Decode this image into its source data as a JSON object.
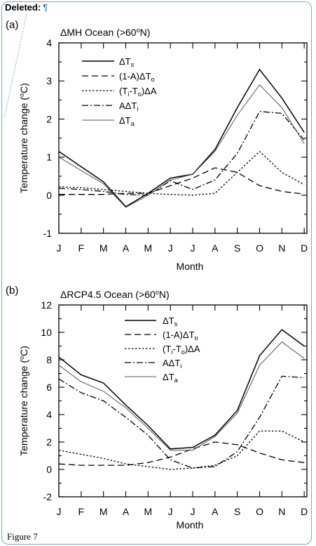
{
  "header": {
    "deleted_label": "Deleted:",
    "pilcrow": "¶"
  },
  "caption": "Figure 7",
  "colors": {
    "frame": "#7aa7d6",
    "pilcrow": "#2e74c4",
    "lines": "#000000",
    "ta_line": "#555555"
  },
  "chart_data": [
    {
      "panel": "(a)",
      "type": "line",
      "title": "ΔMH Ocean (>60°N)",
      "xlabel": "Month",
      "ylabel": "Temperature change (°C)",
      "categories": [
        "J",
        "F",
        "M",
        "A",
        "M",
        "J",
        "J",
        "A",
        "S",
        "O",
        "N",
        "D"
      ],
      "ylim": [
        -1,
        4
      ],
      "yticks": [
        -1,
        0,
        1,
        2,
        3,
        4
      ],
      "legend_position": "upper-left",
      "series": [
        {
          "name": "ΔTs",
          "values": [
            1.15,
            0.75,
            0.35,
            -0.3,
            0.05,
            0.45,
            0.55,
            1.2,
            2.3,
            3.3,
            2.55,
            1.65
          ]
        },
        {
          "name": "(1-A)ΔTo",
          "values": [
            0.02,
            0.02,
            0.02,
            0.05,
            0.05,
            0.25,
            0.45,
            0.72,
            0.6,
            0.25,
            0.1,
            0.03
          ]
        },
        {
          "name": "(Ti-To)ΔA",
          "values": [
            0.22,
            0.2,
            0.15,
            0.1,
            0.05,
            0.02,
            0.0,
            0.05,
            0.6,
            1.15,
            0.6,
            0.28
          ]
        },
        {
          "name": "AΔTi",
          "values": [
            0.18,
            0.15,
            0.1,
            0.02,
            0.0,
            0.38,
            0.15,
            0.4,
            1.1,
            2.2,
            2.15,
            1.45
          ]
        },
        {
          "name": "ΔTa",
          "values": [
            1.0,
            0.65,
            0.3,
            -0.32,
            0.0,
            0.4,
            0.55,
            1.15,
            2.1,
            2.9,
            2.3,
            1.35
          ]
        }
      ]
    },
    {
      "panel": "(b)",
      "type": "line",
      "title": "ΔRCP4.5 Ocean (>60°N)",
      "xlabel": "Month",
      "ylabel": "Temperature change (°C)",
      "categories": [
        "J",
        "F",
        "M",
        "A",
        "M",
        "J",
        "J",
        "A",
        "S",
        "O",
        "N",
        "D"
      ],
      "ylim": [
        -2,
        12
      ],
      "yticks": [
        -2,
        0,
        2,
        4,
        6,
        8,
        10,
        12
      ],
      "legend_position": "upper-right",
      "series": [
        {
          "name": "ΔTs",
          "values": [
            8.2,
            6.9,
            6.3,
            4.7,
            3.2,
            1.5,
            1.6,
            2.5,
            4.3,
            8.3,
            10.2,
            9.0
          ]
        },
        {
          "name": "(1-A)ΔTo",
          "values": [
            0.4,
            0.3,
            0.3,
            0.3,
            0.5,
            0.9,
            1.5,
            2.0,
            1.8,
            1.2,
            0.7,
            0.5
          ]
        },
        {
          "name": "(Ti-To)ΔA",
          "values": [
            1.4,
            1.1,
            0.8,
            0.4,
            0.2,
            0.0,
            0.1,
            0.3,
            1.0,
            2.8,
            2.8,
            2.0
          ]
        },
        {
          "name": "AΔTi",
          "values": [
            6.6,
            5.6,
            5.0,
            3.8,
            2.5,
            0.7,
            0.1,
            0.2,
            1.3,
            3.8,
            6.8,
            6.7
          ]
        },
        {
          "name": "ΔTa",
          "values": [
            7.6,
            6.4,
            5.7,
            4.5,
            3.0,
            1.4,
            1.4,
            2.4,
            4.1,
            7.6,
            9.3,
            8.1
          ]
        }
      ]
    }
  ]
}
